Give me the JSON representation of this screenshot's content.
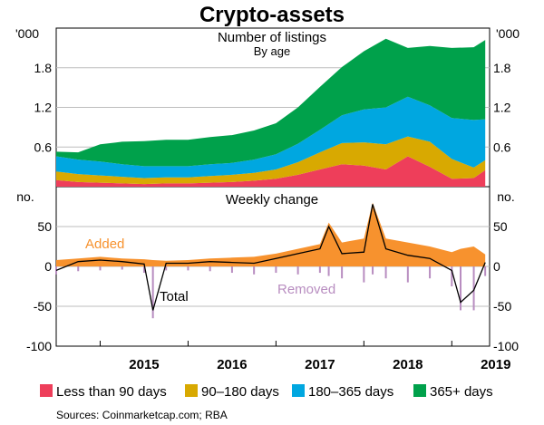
{
  "chart_data": [
    {
      "type": "area",
      "stacked": true,
      "title": "Crypto-assets",
      "panel_title": "Number of listings",
      "panel_subtitle": "By age",
      "unit_label": "'000",
      "ylim": [
        0,
        2.4
      ],
      "yticks": [
        0.6,
        1.2,
        1.8
      ],
      "ytick_labels": [
        "0.6",
        "1.2",
        "1.8"
      ],
      "x": [
        2014.5,
        2014.75,
        2015.0,
        2015.25,
        2015.5,
        2015.75,
        2016.0,
        2016.25,
        2016.5,
        2016.75,
        2017.0,
        2017.25,
        2017.5,
        2017.75,
        2018.0,
        2018.25,
        2018.5,
        2018.75,
        2019.0,
        2019.25,
        2019.38
      ],
      "series": [
        {
          "name": "Less than 90 days",
          "color": "#ee3e5a",
          "values": [
            0.1,
            0.07,
            0.06,
            0.05,
            0.04,
            0.05,
            0.05,
            0.06,
            0.07,
            0.09,
            0.12,
            0.18,
            0.26,
            0.34,
            0.32,
            0.26,
            0.46,
            0.3,
            0.12,
            0.13,
            0.25
          ]
        },
        {
          "name": "90–180 days",
          "color": "#d8a901",
          "values": [
            0.13,
            0.12,
            0.11,
            0.1,
            0.09,
            0.09,
            0.09,
            0.1,
            0.11,
            0.12,
            0.14,
            0.19,
            0.26,
            0.32,
            0.35,
            0.38,
            0.3,
            0.38,
            0.3,
            0.16,
            0.15
          ]
        },
        {
          "name": "180–365 days",
          "color": "#00a7e0",
          "values": [
            0.23,
            0.22,
            0.21,
            0.19,
            0.18,
            0.17,
            0.17,
            0.18,
            0.18,
            0.2,
            0.23,
            0.28,
            0.34,
            0.42,
            0.5,
            0.56,
            0.6,
            0.55,
            0.62,
            0.72,
            0.62
          ]
        },
        {
          "name": "365+ days",
          "color": "#00a14b",
          "values": [
            0.07,
            0.11,
            0.26,
            0.34,
            0.38,
            0.4,
            0.4,
            0.41,
            0.42,
            0.44,
            0.47,
            0.55,
            0.65,
            0.73,
            0.88,
            1.04,
            0.74,
            0.9,
            1.06,
            1.1,
            1.2
          ]
        }
      ]
    },
    {
      "type": "bar",
      "panel_title": "Weekly change",
      "unit_label": "no.",
      "ylim": [
        -100,
        100
      ],
      "yticks": [
        -100,
        -50,
        0,
        50
      ],
      "ytick_labels": [
        "-100",
        "-50",
        "0",
        "50"
      ],
      "annotations": [
        {
          "text": "Added",
          "color": "#f7922e"
        },
        {
          "text": "Removed",
          "color": "#b88dc0"
        },
        {
          "text": "Total",
          "color": "#000000"
        }
      ],
      "x": [
        2014.5,
        2014.75,
        2015.0,
        2015.25,
        2015.5,
        2015.6,
        2015.75,
        2016.0,
        2016.25,
        2016.5,
        2016.75,
        2017.0,
        2017.25,
        2017.5,
        2017.6,
        2017.75,
        2018.0,
        2018.1,
        2018.25,
        2018.5,
        2018.75,
        2019.0,
        2019.1,
        2019.25,
        2019.38
      ],
      "series": [
        {
          "name": "Added",
          "color": "#f7922e",
          "values": [
            8,
            10,
            12,
            10,
            9,
            8,
            7,
            8,
            10,
            11,
            12,
            16,
            22,
            28,
            55,
            30,
            35,
            80,
            35,
            30,
            25,
            18,
            22,
            25,
            15
          ]
        },
        {
          "name": "Removed",
          "color": "#b88dc0",
          "values": [
            -10,
            -6,
            -5,
            -4,
            -8,
            -65,
            -5,
            -5,
            -6,
            -8,
            -10,
            -8,
            -10,
            -8,
            -12,
            -15,
            -20,
            -10,
            -15,
            -20,
            -15,
            -25,
            -55,
            -55,
            -12
          ]
        },
        {
          "name": "Total",
          "color": "#000000",
          "values": [
            -5,
            6,
            8,
            6,
            3,
            -55,
            4,
            4,
            6,
            5,
            4,
            10,
            16,
            22,
            50,
            16,
            18,
            78,
            22,
            14,
            10,
            -5,
            -45,
            -30,
            5
          ]
        }
      ],
      "xtick_labels": [
        "2015",
        "2016",
        "2017",
        "2018",
        "2019"
      ],
      "xticks": [
        2015,
        2016,
        2017,
        2018,
        2019
      ]
    }
  ],
  "legend": [
    {
      "label": "Less than 90 days",
      "color": "#ee3e5a"
    },
    {
      "label": "90–180 days",
      "color": "#d8a901"
    },
    {
      "label": "180–365 days",
      "color": "#00a7e0"
    },
    {
      "label": "365+ days",
      "color": "#00a14b"
    }
  ],
  "source": "Sources:   Coinmarketcap.com; RBA"
}
